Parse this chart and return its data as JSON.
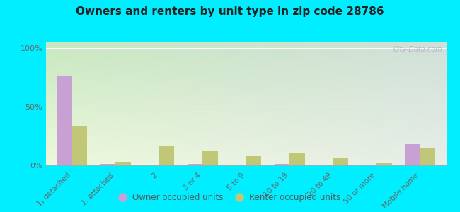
{
  "title": "Owners and renters by unit type in zip code 28786",
  "categories": [
    "1, detached",
    "1, attached",
    "2",
    "3 or 4",
    "5 to 9",
    "10 to 19",
    "20 to 49",
    "50 or more",
    "Mobile home"
  ],
  "owner_values": [
    76,
    1,
    0,
    1,
    0,
    1,
    0,
    0,
    18
  ],
  "renter_values": [
    33,
    3,
    17,
    12,
    8,
    11,
    6,
    2,
    15
  ],
  "owner_color": "#c8a0d4",
  "renter_color": "#c0c878",
  "outer_bg": "#00eeff",
  "ylabel_ticks": [
    0,
    50,
    100
  ],
  "ylabel_labels": [
    "0%",
    "50%",
    "100%"
  ],
  "ylim": [
    0,
    105
  ],
  "bar_width": 0.35,
  "watermark": "City-Data.com",
  "legend_owner": "Owner occupied units",
  "legend_renter": "Renter occupied units",
  "grad_top_left": "#c8e8c0",
  "grad_top_right": "#d8e8d8",
  "grad_bottom_left": "#eef8dc",
  "grad_bottom_right": "#e8eee8"
}
